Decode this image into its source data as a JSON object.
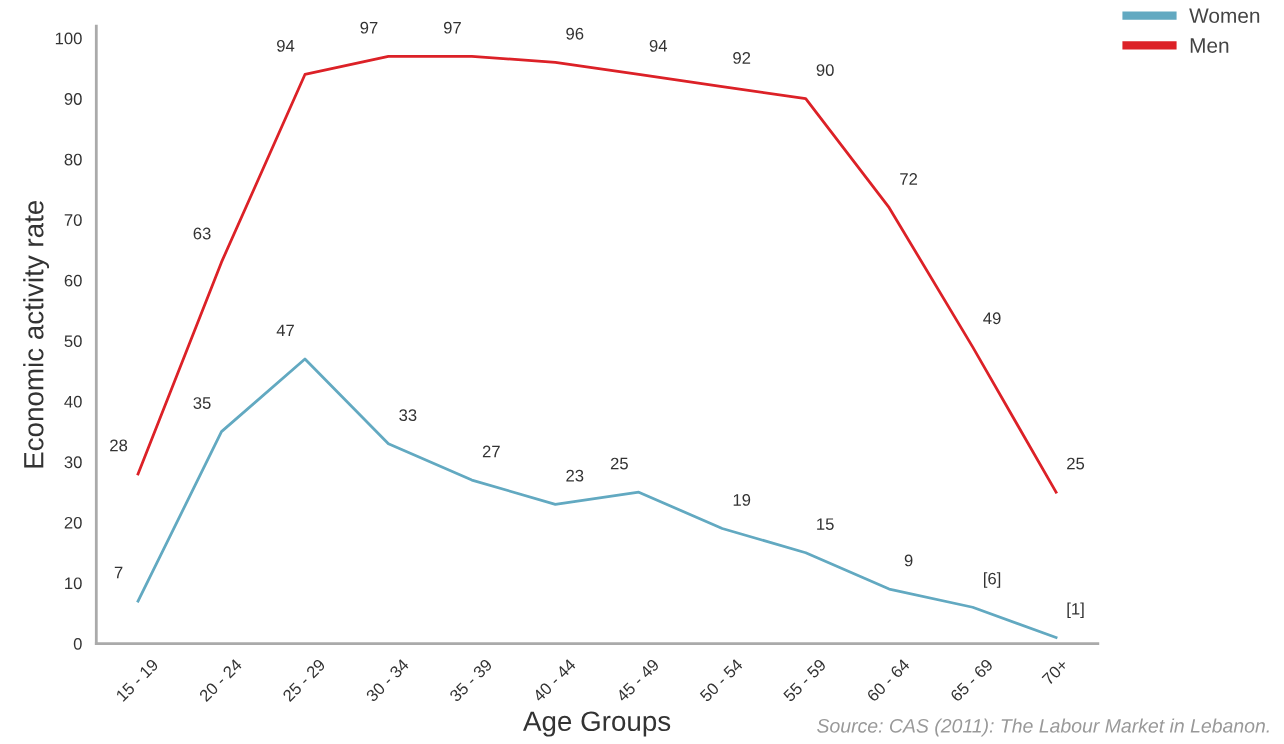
{
  "chart_data": {
    "type": "line",
    "xlabel": "Age Groups",
    "ylabel": "Economic activity rate",
    "categories": [
      "15 - 19",
      "20 - 24",
      "25 - 29",
      "30 - 34",
      "35 - 39",
      "40 - 44",
      "45 - 49",
      "50 - 54",
      "55 - 59",
      "60 - 64",
      "65 - 69",
      "70+"
    ],
    "series": [
      {
        "name": "Women",
        "color": "#62a9c1",
        "values": [
          7,
          35,
          47,
          33,
          27,
          23,
          25,
          19,
          15,
          9,
          6,
          1
        ],
        "value_labels": [
          "7",
          "35",
          "47",
          "33",
          "27",
          "23",
          "25",
          "19",
          "15",
          "9",
          "[6]",
          "[1]"
        ]
      },
      {
        "name": "Men",
        "color": "#dc2127",
        "values": [
          28,
          63,
          94,
          97,
          97,
          96,
          94,
          92,
          90,
          72,
          49,
          25
        ],
        "value_labels": [
          "28",
          "63",
          "94",
          "97",
          "97",
          "96",
          "94",
          "92",
          "90",
          "72",
          "49",
          "25"
        ]
      }
    ],
    "ylim": [
      0,
      102
    ],
    "yticks": [
      0,
      10,
      20,
      30,
      40,
      50,
      60,
      70,
      80,
      90,
      100
    ],
    "grid": false,
    "legend": "top right",
    "marker": "none",
    "line_style": "solid",
    "annotations": [
      "Source: CAS (2011): The Labour Market in Lebanon."
    ]
  }
}
